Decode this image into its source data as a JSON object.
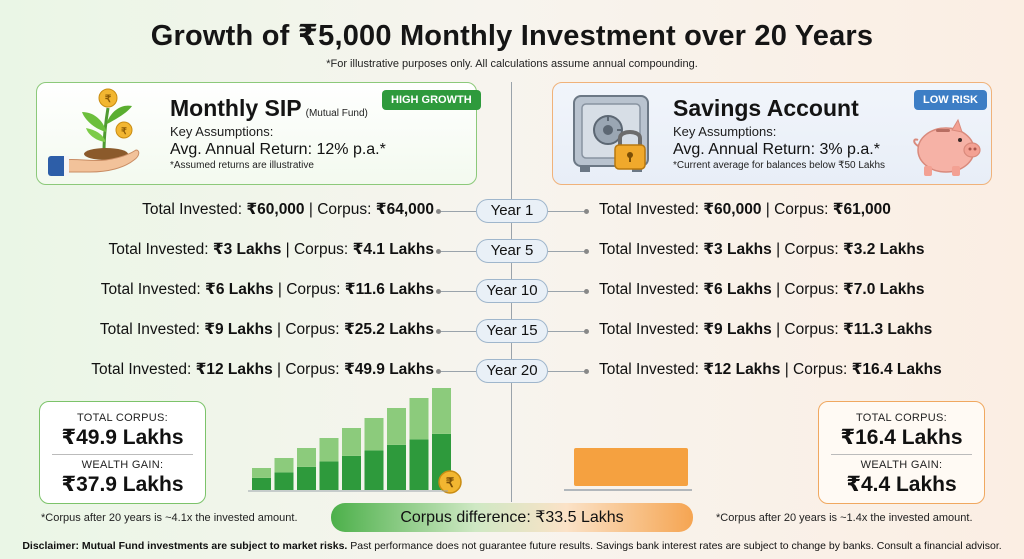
{
  "title": "Growth of ₹5,000 Monthly Investment over 20 Years",
  "subtitle": "*For illustrative purposes only. All calculations assume annual compounding.",
  "left_card": {
    "title": "Monthly SIP",
    "title_sub": "(Mutual Fund)",
    "badge": "HIGH GROWTH",
    "assumptions_label": "Key Assumptions:",
    "return_line": "Avg. Annual Return: 12% p.a.*",
    "note": "*Assumed returns are illustrative",
    "icon": "money-plant-in-hand-icon",
    "accent": "#2e9a3c"
  },
  "right_card": {
    "title": "Savings Account",
    "badge": "LOW RISK",
    "assumptions_label": "Key Assumptions:",
    "return_line": "Avg. Annual Return: 3% p.a.*",
    "note": "*Current average for balances below ₹50 Lakhs",
    "icons": [
      "safe-vault-icon",
      "piggy-bank-icon"
    ],
    "accent": "#3d7ec5"
  },
  "rows": [
    {
      "year": "Year 1",
      "left": {
        "invested_label": "Total Invested:",
        "invested": "₹60,000",
        "corpus_label": "Corpus:",
        "corpus": "₹64,000"
      },
      "right": {
        "invested_label": "Total Invested:",
        "invested": "₹60,000",
        "corpus_label": "Corpus:",
        "corpus": "₹61,000"
      }
    },
    {
      "year": "Year 5",
      "left": {
        "invested_label": "Total Invested:",
        "invested": "₹3 Lakhs",
        "corpus_label": "Corpus:",
        "corpus": "₹4.1 Lakhs"
      },
      "right": {
        "invested_label": "Total Invested:",
        "invested": "₹3 Lakhs",
        "corpus_label": "Corpus:",
        "corpus": "₹3.2 Lakhs"
      }
    },
    {
      "year": "Year 10",
      "left": {
        "invested_label": "Total Invested:",
        "invested": "₹6 Lakhs",
        "corpus_label": "Corpus:",
        "corpus": "₹11.6 Lakhs"
      },
      "right": {
        "invested_label": "Total Invested:",
        "invested": "₹6 Lakhs",
        "corpus_label": "Corpus:",
        "corpus": "₹7.0 Lakhs"
      }
    },
    {
      "year": "Year 15",
      "left": {
        "invested_label": "Total Invested:",
        "invested": "₹9 Lakhs",
        "corpus_label": "Corpus:",
        "corpus": "₹25.2 Lakhs"
      },
      "right": {
        "invested_label": "Total Invested:",
        "invested": "₹9 Lakhs",
        "corpus_label": "Corpus:",
        "corpus": "₹11.3 Lakhs"
      }
    },
    {
      "year": "Year 20",
      "left": {
        "invested_label": "Total Invested:",
        "invested": "₹12 Lakhs",
        "corpus_label": "Corpus:",
        "corpus": "₹49.9 Lakhs"
      },
      "right": {
        "invested_label": "Total Invested:",
        "invested": "₹12 Lakhs",
        "corpus_label": "Corpus:",
        "corpus": "₹16.4 Lakhs"
      }
    }
  ],
  "left_summary": {
    "corpus_label": "TOTAL CORPUS:",
    "corpus": "₹49.9 Lakhs",
    "gain_label": "WEALTH GAIN:",
    "gain": "₹37.9 Lakhs",
    "footnote": "*Corpus after 20 years is ~4.1x the invested amount."
  },
  "right_summary": {
    "corpus_label": "TOTAL CORPUS:",
    "corpus": "₹16.4 Lakhs",
    "gain_label": "WEALTH GAIN:",
    "gain": "₹4.4 Lakhs",
    "footnote": "*Corpus after 20 years is ~1.4x the invested amount."
  },
  "difference": "Corpus difference: ₹33.5 Lakhs",
  "disclaimer": {
    "bold": "Disclaimer: Mutual Fund investments are subject to market risks.",
    "rest": " Past performance does not guarantee future results. Savings bank interest rates are subject to change by banks. Consult a financial advisor."
  },
  "colors": {
    "green": "#2e9a3c",
    "light_green": "#8ccb7c",
    "orange": "#f5a140",
    "blue": "#3d7ec5"
  },
  "growth_bars": {
    "count": 9,
    "coin_icon": "rupee-coin-icon",
    "savings_block_icon": "orange-block-icon"
  }
}
